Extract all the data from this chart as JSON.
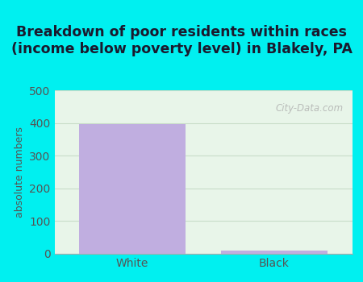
{
  "categories": [
    "White",
    "Black"
  ],
  "values": [
    396,
    11
  ],
  "bar_color": "#c0aee0",
  "title": "Breakdown of poor residents within races\n(income below poverty level) in Blakely, PA",
  "ylabel": "absolute numbers",
  "ylim": [
    0,
    500
  ],
  "yticks": [
    0,
    100,
    200,
    300,
    400,
    500
  ],
  "title_fontsize": 12.5,
  "label_fontsize": 9,
  "tick_fontsize": 10,
  "bg_outer": "#00f0f0",
  "bg_plot": "#e8f5e9",
  "grid_color": "#c8ddc8",
  "watermark": "City-Data.com",
  "title_color": "#1a1a2e",
  "tick_color": "#555555",
  "ylabel_color": "#555555"
}
